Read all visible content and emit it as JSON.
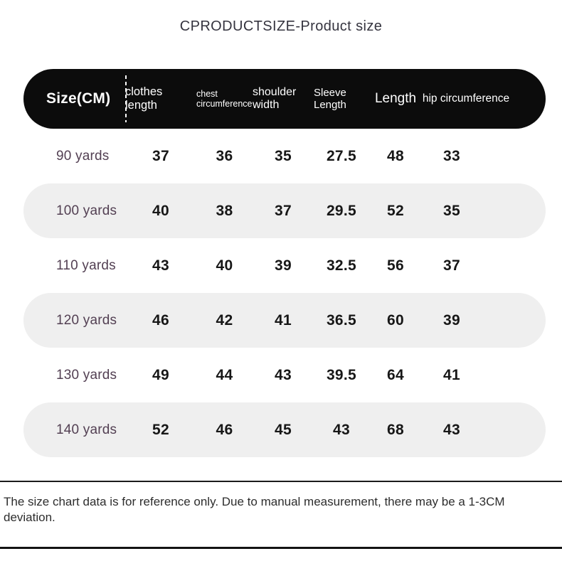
{
  "title": "CPRODUCTSIZE-Product size",
  "table": {
    "size_header": "Size(CM)",
    "columns": [
      "clothes length",
      "chest circumference",
      "shoulder width",
      "Sleeve Length",
      "Length",
      "hip circumference"
    ],
    "rows": [
      {
        "label": "90 yards",
        "values": [
          "37",
          "36",
          "35",
          "27.5",
          "48",
          "33"
        ]
      },
      {
        "label": "100 yards",
        "values": [
          "40",
          "38",
          "37",
          "29.5",
          "52",
          "35"
        ]
      },
      {
        "label": "110 yards",
        "values": [
          "43",
          "40",
          "39",
          "32.5",
          "56",
          "37"
        ]
      },
      {
        "label": "120 yards",
        "values": [
          "46",
          "42",
          "41",
          "36.5",
          "60",
          "39"
        ]
      },
      {
        "label": "130 yards",
        "values": [
          "49",
          "44",
          "43",
          "39.5",
          "64",
          "41"
        ]
      },
      {
        "label": "140 yards",
        "values": [
          "52",
          "46",
          "45",
          "43",
          "68",
          "43"
        ]
      }
    ]
  },
  "footer": {
    "note": "The size chart data is for reference only. Due to manual measurement, there may be a 1-3CM deviation."
  },
  "colors": {
    "header_bg": "#0c0c0c",
    "header_text": "#ffffff",
    "alt_row_bg": "#efefef",
    "row_label_text": "#534053",
    "value_text": "#171717",
    "title_text": "#35343f",
    "note_text": "#2d2d2d",
    "divider_line": "#1b1b1b"
  }
}
